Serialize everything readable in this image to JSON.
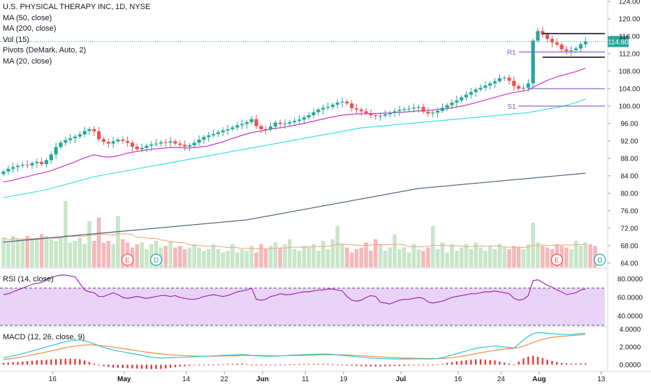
{
  "legend": {
    "title": "U.S. PHYSICAL THERAPY INC, 1D, NYSE",
    "items": [
      "MA (50, close)",
      "MA (200, close)",
      "Vol (15)",
      "Pivots (DeMark, Auto, 2)",
      "MA (20, close)"
    ]
  },
  "rsi_title": "RSI (14, close)",
  "macd_title": "MACD (12, 26, close, 9)",
  "price_badge": "114.80",
  "pivots": {
    "r1_label": "R1",
    "s1_label": "S1"
  },
  "events": [
    {
      "letter": "E",
      "idx": 26
    },
    {
      "letter": "D",
      "idx": 32
    },
    {
      "letter": "E",
      "idx": 116
    },
    {
      "letter": "D",
      "idx": 125
    }
  ],
  "colors": {
    "up": "#26a69a",
    "down": "#ef5350",
    "vol_up": "#c8e6c9",
    "vol_down": "#f6b8bb",
    "ma20": "#cc33cc",
    "ma50": "#40e0e0",
    "ma200": "#4a5a6e",
    "vol_ma": "#f4a070",
    "rsi": "#9c27b0",
    "rsi_band": "#e9d4f7",
    "macd": "#26c6da",
    "signal": "#ef8a3f",
    "hist": "#e53935",
    "pivot": "#7e57c2"
  },
  "chart_data": [
    {
      "type": "candlestick",
      "title": "U.S. PHYSICAL THERAPY INC, 1D, NYSE",
      "ylim": [
        63,
        124
      ],
      "y_ticks": [
        "124.00",
        "120.00",
        "116.00",
        "112.00",
        "108.00",
        "104.00",
        "100.00",
        "96.00",
        "92.00",
        "88.00",
        "84.00",
        "80.00",
        "76.00",
        "72.00",
        "68.00",
        "64.00"
      ],
      "x_ticks": [
        {
          "label": "16",
          "idx": 10,
          "bold": false
        },
        {
          "label": "May",
          "idx": 25,
          "bold": true
        },
        {
          "label": "14",
          "idx": 38,
          "bold": false
        },
        {
          "label": "22",
          "idx": 46,
          "bold": false
        },
        {
          "label": "Jun",
          "idx": 54,
          "bold": true
        },
        {
          "label": "11",
          "idx": 63,
          "bold": false
        },
        {
          "label": "19",
          "idx": 71,
          "bold": false
        },
        {
          "label": "Jul",
          "idx": 83,
          "bold": true
        },
        {
          "label": "16",
          "idx": 95,
          "bold": false
        },
        {
          "label": "24",
          "idx": 104,
          "bold": false
        },
        {
          "label": "Aug",
          "idx": 112,
          "bold": true
        },
        {
          "label": "13",
          "idx": 125,
          "bold": false
        }
      ],
      "closes": [
        85.0,
        85.6,
        86.0,
        86.3,
        86.5,
        86.4,
        86.9,
        87.2,
        86.7,
        87.6,
        88.9,
        90.6,
        91.6,
        92.2,
        92.6,
        93.0,
        93.5,
        94.3,
        94.7,
        94.2,
        92.4,
        91.8,
        91.4,
        91.9,
        92.3,
        92.0,
        91.6,
        90.7,
        90.1,
        90.4,
        90.9,
        91.2,
        91.4,
        91.7,
        91.6,
        91.9,
        91.4,
        91.1,
        90.7,
        91.0,
        91.6,
        92.3,
        92.9,
        93.3,
        93.6,
        94.0,
        94.4,
        94.7,
        95.1,
        95.6,
        95.9,
        96.3,
        97.0,
        95.4,
        94.7,
        94.6,
        95.3,
        96.2,
        95.9,
        96.0,
        96.3,
        96.6,
        96.9,
        97.4,
        97.9,
        98.6,
        99.2,
        99.6,
        99.8,
        100.3,
        100.8,
        101.0,
        100.6,
        99.5,
        99.2,
        98.8,
        98.3,
        97.9,
        97.7,
        97.8,
        98.1,
        98.4,
        98.8,
        99.1,
        99.3,
        99.4,
        99.6,
        99.8,
        98.7,
        98.3,
        98.5,
        98.9,
        99.6,
        100.2,
        100.8,
        101.3,
        102.0,
        102.6,
        103.2,
        103.8,
        104.2,
        104.7,
        105.2,
        105.7,
        106.4,
        106.5,
        105.8,
        104.6,
        104.0,
        104.2,
        105.2,
        115.0,
        117.2,
        116.4,
        115.4,
        114.6,
        114.1,
        113.0,
        112.6,
        112.8,
        113.2,
        114.2,
        114.8
      ],
      "volume": [
        18,
        15,
        19,
        17,
        16,
        19,
        17,
        18,
        20,
        19,
        17,
        16,
        18,
        40,
        15,
        16,
        18,
        14,
        28,
        16,
        30,
        15,
        16,
        14,
        31,
        17,
        15,
        12,
        14,
        15,
        11,
        14,
        16,
        12,
        13,
        16,
        12,
        13,
        11,
        12,
        14,
        12,
        10,
        11,
        14,
        11,
        9,
        10,
        14,
        9,
        11,
        10,
        13,
        9,
        14,
        11,
        13,
        15,
        12,
        14,
        17,
        11,
        10,
        13,
        12,
        14,
        10,
        16,
        11,
        17,
        25,
        14,
        12,
        9,
        11,
        12,
        15,
        10,
        17,
        14,
        10,
        12,
        20,
        11,
        12,
        9,
        14,
        11,
        10,
        12,
        25,
        11,
        15,
        9,
        14,
        10,
        12,
        14,
        11,
        15,
        12,
        10,
        13,
        11,
        14,
        12,
        11,
        13,
        12,
        11,
        14,
        27,
        15,
        13,
        12,
        11,
        14,
        13,
        12,
        11,
        16,
        13,
        15,
        14,
        13
      ],
      "ma20": [
        82.6,
        82.8,
        83.0,
        83.3,
        83.6,
        83.8,
        84.1,
        84.4,
        84.6,
        84.9,
        85.2,
        85.6,
        86.0,
        86.4,
        86.8,
        87.2,
        87.7,
        88.1,
        88.5,
        88.8,
        88.6,
        88.4,
        88.3,
        88.4,
        88.6,
        88.9,
        89.2,
        89.4,
        89.6,
        89.8,
        89.9,
        90.1,
        90.2,
        90.3,
        90.4,
        90.5,
        90.5,
        90.5,
        90.4,
        90.4,
        90.5,
        90.6,
        90.7,
        90.9,
        91.2,
        91.5,
        91.8,
        92.2,
        92.6,
        92.9,
        93.3,
        93.6,
        93.9,
        94.1,
        94.3,
        94.5,
        94.7,
        94.9,
        95.0,
        95.2,
        95.4,
        95.6,
        95.8,
        96.0,
        96.3,
        96.5,
        96.8,
        97.0,
        97.3,
        97.5,
        97.7,
        97.9,
        98.0,
        98.1,
        98.2,
        98.2,
        98.3,
        98.3,
        98.3,
        98.3,
        98.4,
        98.4,
        98.5,
        98.5,
        98.6,
        98.7,
        98.8,
        98.9,
        98.9,
        99.0,
        99.1,
        99.2,
        99.3,
        99.4,
        99.6,
        99.8,
        100.0,
        100.2,
        100.5,
        100.8,
        101.1,
        101.4,
        101.7,
        102.0,
        102.3,
        102.6,
        102.9,
        103.1,
        103.3,
        103.5,
        103.7,
        104.3,
        104.9,
        105.4,
        105.9,
        106.3,
        106.7,
        107.0,
        107.3,
        107.6,
        107.9,
        108.3,
        108.7
      ],
      "ma50": [
        79.0,
        79.2,
        79.4,
        79.6,
        79.8,
        80.0,
        80.2,
        80.4,
        80.6,
        80.8,
        81.1,
        81.4,
        81.7,
        82.0,
        82.3,
        82.6,
        82.9,
        83.2,
        83.5,
        83.8,
        84.0,
        84.2,
        84.4,
        84.6,
        84.8,
        85.0,
        85.2,
        85.4,
        85.6,
        85.8,
        86.0,
        86.2,
        86.4,
        86.6,
        86.8,
        87.0,
        87.2,
        87.4,
        87.6,
        87.8,
        88.0,
        88.2,
        88.4,
        88.6,
        88.8,
        89.0,
        89.2,
        89.4,
        89.6,
        89.8,
        90.0,
        90.2,
        90.4,
        90.6,
        90.8,
        91.0,
        91.2,
        91.4,
        91.6,
        91.8,
        92.0,
        92.2,
        92.4,
        92.6,
        92.8,
        93.0,
        93.2,
        93.4,
        93.6,
        93.8,
        94.0,
        94.2,
        94.4,
        94.6,
        94.8,
        95.0,
        95.1,
        95.2,
        95.3,
        95.4,
        95.5,
        95.6,
        95.7,
        95.8,
        95.9,
        96.0,
        96.1,
        96.2,
        96.3,
        96.4,
        96.5,
        96.6,
        96.7,
        96.8,
        96.9,
        97.0,
        97.1,
        97.2,
        97.3,
        97.4,
        97.5,
        97.6,
        97.7,
        97.8,
        97.9,
        98.0,
        98.1,
        98.2,
        98.3,
        98.4,
        98.5,
        98.7,
        98.9,
        99.1,
        99.3,
        99.5,
        99.7,
        99.9,
        100.2,
        100.5,
        100.8,
        101.2,
        101.6
      ],
      "ma200": [
        68.8,
        68.9,
        69.0,
        69.1,
        69.2,
        69.3,
        69.4,
        69.5,
        69.6,
        69.7,
        69.8,
        69.9,
        70.0,
        70.1,
        70.2,
        70.3,
        70.4,
        70.5,
        70.6,
        70.7,
        70.8,
        70.9,
        71.0,
        71.1,
        71.2,
        71.3,
        71.4,
        71.5,
        71.6,
        71.7,
        71.8,
        71.9,
        72.0,
        72.1,
        72.2,
        72.3,
        72.4,
        72.5,
        72.6,
        72.7,
        72.8,
        72.9,
        73.0,
        73.1,
        73.2,
        73.3,
        73.4,
        73.5,
        73.6,
        73.7,
        73.8,
        73.9,
        74.1,
        74.3,
        74.5,
        74.7,
        74.9,
        75.1,
        75.3,
        75.5,
        75.7,
        75.9,
        76.1,
        76.3,
        76.5,
        76.7,
        76.9,
        77.1,
        77.3,
        77.5,
        77.7,
        77.9,
        78.1,
        78.3,
        78.5,
        78.7,
        78.9,
        79.1,
        79.3,
        79.5,
        79.7,
        79.9,
        80.1,
        80.3,
        80.5,
        80.7,
        80.9,
        81.1,
        81.2,
        81.3,
        81.4,
        81.5,
        81.6,
        81.7,
        81.8,
        81.9,
        82.0,
        82.1,
        82.2,
        82.3,
        82.4,
        82.5,
        82.6,
        82.7,
        82.8,
        82.9,
        83.0,
        83.1,
        83.2,
        83.3,
        83.4,
        83.5,
        83.6,
        83.7,
        83.8,
        83.9,
        84.0,
        84.1,
        84.2,
        84.3,
        84.4,
        84.5,
        84.6
      ],
      "pivots": [
        {
          "label": "",
          "value": 116.6,
          "from": 113,
          "to": 126,
          "color": "#131722"
        },
        {
          "label": "R1",
          "value": 112.4,
          "from": 108,
          "to": 126,
          "color": "#7e57c2"
        },
        {
          "label": "",
          "value": 111.2,
          "from": 113,
          "to": 126,
          "color": "#131722"
        },
        {
          "label": "",
          "value": 104.0,
          "from": 110,
          "to": 126,
          "color": "#7e57c2"
        },
        {
          "label": "S1",
          "value": 100.0,
          "from": 108,
          "to": 126,
          "color": "#7e57c2"
        }
      ],
      "last_price": 114.8
    },
    {
      "type": "line",
      "title": "RSI (14, close)",
      "ylim": [
        30,
        90
      ],
      "y_ticks": [
        "80.0000",
        "60.0000",
        "40.0000"
      ],
      "bands": [
        70,
        30
      ],
      "values": [
        63,
        64,
        66,
        68,
        70,
        72,
        74,
        75,
        76,
        80,
        81,
        83,
        84,
        84,
        83,
        82,
        75,
        68,
        66,
        65,
        61,
        61,
        63,
        65,
        63,
        60,
        59,
        60,
        61,
        60,
        59,
        60,
        61,
        62,
        62,
        61,
        62,
        60,
        59,
        58,
        58,
        59,
        61,
        62,
        63,
        62,
        61,
        62,
        64,
        66,
        67,
        68,
        70,
        58,
        57,
        58,
        61,
        62,
        64,
        63,
        63,
        64,
        65,
        66,
        66,
        67,
        68,
        68,
        69,
        69,
        68,
        67,
        61,
        57,
        56,
        57,
        60,
        62,
        61,
        55,
        54,
        53,
        55,
        57,
        58,
        58,
        59,
        60,
        59,
        55,
        54,
        55,
        56,
        58,
        60,
        61,
        62,
        63,
        64,
        64,
        65,
        66,
        66,
        67,
        66,
        65,
        64,
        59,
        57,
        58,
        62,
        78,
        79,
        76,
        73,
        71,
        68,
        66,
        63,
        64,
        65,
        68,
        69
      ]
    },
    {
      "type": "line",
      "title": "MACD (12, 26, close, 9)",
      "ylim": [
        -0.6,
        4.2
      ],
      "y_ticks": [
        "4.0000",
        "2.0000",
        "0.0000"
      ],
      "macd": [
        0.8,
        0.9,
        1.0,
        1.1,
        1.25,
        1.4,
        1.55,
        1.7,
        1.85,
        2.0,
        2.15,
        2.3,
        2.45,
        2.6,
        2.7,
        2.75,
        2.8,
        2.7,
        2.55,
        2.35,
        2.15,
        1.95,
        1.8,
        1.65,
        1.55,
        1.45,
        1.35,
        1.25,
        1.15,
        1.05,
        0.95,
        0.85,
        0.8,
        0.75,
        0.75,
        0.78,
        0.8,
        0.83,
        0.85,
        0.88,
        0.9,
        0.93,
        0.95,
        0.97,
        1.0,
        1.02,
        1.05,
        1.08,
        1.1,
        1.12,
        1.15,
        1.1,
        1.05,
        1.0,
        0.98,
        0.95,
        0.95,
        0.97,
        1.0,
        1.02,
        1.05,
        1.08,
        1.1,
        1.13,
        1.15,
        1.17,
        1.18,
        1.2,
        1.2,
        1.15,
        1.1,
        1.05,
        1.0,
        0.95,
        0.9,
        0.85,
        0.8,
        0.75,
        0.72,
        0.7,
        0.68,
        0.66,
        0.65,
        0.64,
        0.64,
        0.65,
        0.66,
        0.67,
        0.66,
        0.65,
        0.66,
        0.7,
        0.8,
        0.95,
        1.1,
        1.25,
        1.4,
        1.55,
        1.7,
        1.85,
        1.95,
        2.0,
        2.05,
        2.1,
        2.05,
        2.0,
        1.95,
        1.9,
        2.3,
        2.8,
        3.2,
        3.5,
        3.6,
        3.6,
        3.55,
        3.5,
        3.45,
        3.4,
        3.4,
        3.4,
        3.45,
        3.5,
        3.55
      ],
      "signal": [
        0.6,
        0.65,
        0.72,
        0.8,
        0.9,
        1.0,
        1.1,
        1.2,
        1.32,
        1.44,
        1.56,
        1.68,
        1.8,
        1.92,
        2.02,
        2.1,
        2.18,
        2.22,
        2.24,
        2.22,
        2.18,
        2.12,
        2.05,
        1.98,
        1.9,
        1.82,
        1.74,
        1.66,
        1.58,
        1.5,
        1.42,
        1.35,
        1.28,
        1.22,
        1.16,
        1.12,
        1.08,
        1.05,
        1.02,
        1.0,
        0.98,
        0.97,
        0.96,
        0.96,
        0.96,
        0.97,
        0.98,
        0.99,
        1.0,
        1.01,
        1.03,
        1.04,
        1.04,
        1.04,
        1.03,
        1.02,
        1.01,
        1.01,
        1.01,
        1.01,
        1.02,
        1.03,
        1.04,
        1.05,
        1.07,
        1.08,
        1.1,
        1.11,
        1.12,
        1.12,
        1.12,
        1.11,
        1.09,
        1.07,
        1.04,
        1.01,
        0.98,
        0.95,
        0.92,
        0.89,
        0.86,
        0.83,
        0.8,
        0.78,
        0.76,
        0.74,
        0.73,
        0.72,
        0.71,
        0.7,
        0.69,
        0.69,
        0.71,
        0.75,
        0.8,
        0.87,
        0.95,
        1.04,
        1.14,
        1.24,
        1.34,
        1.44,
        1.53,
        1.62,
        1.7,
        1.76,
        1.82,
        1.86,
        1.95,
        2.1,
        2.3,
        2.5,
        2.7,
        2.85,
        2.98,
        3.08,
        3.15,
        3.2,
        3.24,
        3.28,
        3.32,
        3.36,
        3.4
      ],
      "hist": [
        0.2,
        0.25,
        0.28,
        0.3,
        0.35,
        0.4,
        0.45,
        0.5,
        0.53,
        0.56,
        0.59,
        0.62,
        0.65,
        0.68,
        0.68,
        0.65,
        0.62,
        0.48,
        0.31,
        0.13,
        -0.03,
        -0.17,
        -0.25,
        -0.33,
        -0.35,
        -0.37,
        -0.39,
        -0.41,
        -0.43,
        -0.45,
        -0.47,
        -0.5,
        -0.48,
        -0.47,
        -0.41,
        -0.34,
        -0.28,
        -0.22,
        -0.17,
        -0.12,
        -0.08,
        -0.04,
        -0.01,
        0.01,
        0.04,
        0.05,
        0.07,
        0.09,
        0.1,
        0.11,
        0.12,
        0.06,
        0.01,
        -0.04,
        -0.05,
        -0.07,
        -0.06,
        -0.04,
        -0.01,
        0.01,
        0.03,
        0.05,
        0.06,
        0.08,
        0.08,
        0.09,
        0.08,
        0.09,
        0.08,
        0.03,
        -0.02,
        -0.06,
        -0.09,
        -0.12,
        -0.14,
        -0.16,
        -0.18,
        -0.2,
        -0.2,
        -0.19,
        -0.18,
        -0.17,
        -0.15,
        -0.14,
        -0.12,
        -0.09,
        -0.07,
        -0.05,
        -0.05,
        -0.05,
        -0.03,
        0.01,
        0.09,
        0.2,
        0.3,
        0.38,
        0.45,
        0.51,
        0.56,
        0.61,
        0.61,
        0.56,
        0.52,
        0.48,
        0.35,
        0.24,
        0.13,
        0.04,
        0.35,
        0.7,
        0.9,
        1.0,
        0.9,
        0.75,
        0.57,
        0.42,
        0.3,
        0.2,
        0.16,
        0.12,
        0.13,
        0.14,
        0.15
      ]
    }
  ]
}
